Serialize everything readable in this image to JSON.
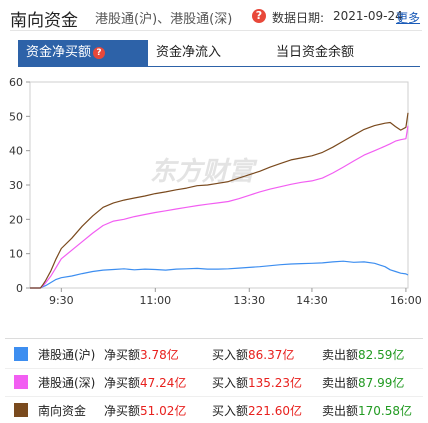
{
  "header": {
    "title": "南向资金",
    "subtitle": "港股通(沪)、港股通(深)",
    "help_glyph": "?",
    "date_label": "数据日期:",
    "date_value": "2021-09-24",
    "more": "更多"
  },
  "tabs": [
    {
      "label": "资金净买额",
      "active": true
    },
    {
      "label": "资金净流入",
      "active": false
    },
    {
      "label": "当日资金余额",
      "active": false
    }
  ],
  "watermark": "东方财富",
  "colors": {
    "sh": "#3d8ef0",
    "sz": "#f25ef2",
    "total": "#7a4a1e",
    "accent": "#2d62a8"
  },
  "chart_data": {
    "type": "line",
    "ylim": [
      0,
      60
    ],
    "yticks": [
      0,
      10,
      20,
      30,
      40,
      50,
      60
    ],
    "xticks": [
      "9:30",
      "11:00",
      "13:30",
      "14:30",
      "16:00"
    ],
    "series": [
      {
        "name": "港股通(沪)",
        "color": "#3d8ef0",
        "x": [
          0,
          5,
          10,
          12,
          15,
          20,
          25,
          30,
          40,
          50,
          60,
          70,
          80,
          90,
          100,
          110,
          120,
          130,
          140,
          150,
          160,
          170,
          180,
          190,
          200,
          210,
          220,
          230,
          240,
          250,
          260,
          270,
          280,
          290,
          300,
          310,
          320,
          330,
          340,
          345,
          350,
          355,
          360,
          362
        ],
        "values": [
          0,
          0,
          0,
          0.3,
          0.7,
          1.6,
          2.5,
          3.0,
          3.5,
          4.2,
          4.8,
          5.2,
          5.4,
          5.6,
          5.3,
          5.5,
          5.4,
          5.2,
          5.5,
          5.6,
          5.7,
          5.5,
          5.5,
          5.6,
          5.8,
          6.0,
          6.2,
          6.5,
          6.8,
          7.0,
          7.1,
          7.2,
          7.3,
          7.6,
          7.8,
          7.5,
          7.6,
          7.2,
          6.2,
          5.3,
          4.8,
          4.3,
          4.1,
          3.78
        ]
      },
      {
        "name": "港股通(深)",
        "color": "#f25ef2",
        "x": [
          0,
          5,
          10,
          12,
          15,
          20,
          25,
          30,
          40,
          50,
          60,
          70,
          80,
          90,
          100,
          110,
          120,
          130,
          140,
          150,
          160,
          170,
          180,
          190,
          200,
          210,
          220,
          230,
          240,
          250,
          260,
          270,
          280,
          290,
          300,
          310,
          320,
          330,
          340,
          345,
          350,
          355,
          360,
          362
        ],
        "values": [
          0,
          0,
          0,
          0.5,
          1.5,
          3.5,
          6.0,
          8.5,
          11.0,
          13.5,
          16.0,
          18.2,
          19.5,
          20.0,
          20.8,
          21.4,
          22.0,
          22.5,
          23.0,
          23.5,
          24.0,
          24.4,
          24.8,
          25.2,
          26.0,
          27.0,
          28.0,
          28.8,
          29.5,
          30.2,
          30.8,
          31.2,
          32.0,
          33.5,
          35.2,
          37.0,
          38.7,
          40.0,
          41.3,
          42.0,
          42.8,
          43.2,
          43.5,
          47.24
        ]
      },
      {
        "name": "南向资金",
        "color": "#7a4a1e",
        "x": [
          0,
          5,
          10,
          12,
          15,
          20,
          25,
          30,
          40,
          50,
          60,
          70,
          80,
          90,
          100,
          110,
          120,
          130,
          140,
          150,
          160,
          170,
          180,
          190,
          200,
          210,
          220,
          230,
          240,
          250,
          260,
          270,
          280,
          290,
          300,
          310,
          320,
          330,
          340,
          345,
          350,
          355,
          360,
          362
        ],
        "values": [
          0,
          0,
          0,
          0.8,
          2.2,
          5.0,
          8.5,
          11.5,
          14.5,
          18.0,
          21.0,
          23.5,
          24.8,
          25.6,
          26.2,
          26.8,
          27.5,
          28.0,
          28.6,
          29.1,
          29.8,
          30.0,
          30.5,
          31.0,
          32.0,
          33.0,
          34.0,
          35.2,
          36.3,
          37.3,
          37.9,
          38.5,
          39.5,
          41.0,
          42.8,
          44.5,
          46.2,
          47.3,
          48.0,
          48.2,
          47.0,
          46.0,
          46.8,
          51.02
        ]
      }
    ]
  },
  "legend": [
    {
      "name": "港股通(沪)",
      "net_label": "净买额",
      "net": "3.78亿",
      "buy_label": "买入额",
      "buy": "86.37亿",
      "sell_label": "卖出额",
      "sell": "82.59亿",
      "color": "#3d8ef0"
    },
    {
      "name": "港股通(深)",
      "net_label": "净买额",
      "net": "47.24亿",
      "buy_label": "买入额",
      "buy": "135.23亿",
      "sell_label": "卖出额",
      "sell": "87.99亿",
      "color": "#f25ef2"
    },
    {
      "name": "南向资金",
      "net_label": "净买额",
      "net": "51.02亿",
      "buy_label": "买入额",
      "buy": "221.60亿",
      "sell_label": "卖出额",
      "sell": "170.58亿",
      "color": "#7a4a1e"
    }
  ]
}
